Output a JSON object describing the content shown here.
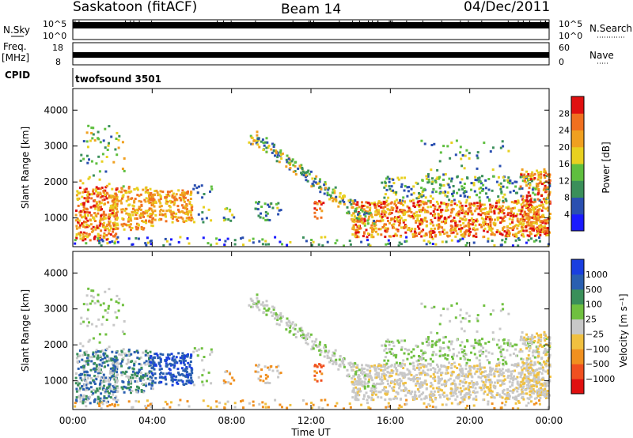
{
  "header": {
    "station": "Saskatoon (fitACF)",
    "beam": "Beam 14",
    "date": "04/Dec/2011"
  },
  "strip_labels": {
    "nsky": "N.Sky",
    "nsky_ticks": [
      "10^5",
      "10^0"
    ],
    "nsearch": "N.Search",
    "nsearch_ticks": [
      "10^5",
      "10^0"
    ],
    "freq_line1": "Freq.",
    "freq_line2": "[MHz]",
    "freq_ticks": [
      "18",
      "8"
    ],
    "nave": "Nave",
    "nave_ticks": [
      "60",
      "0"
    ],
    "cpid": "CPID",
    "cpid_value": "twofsound 3501"
  },
  "colors": {
    "power": [
      "#1a1aff",
      "#2a4fb0",
      "#3a8f5a",
      "#5fbf3f",
      "#e8d020",
      "#f0a020",
      "#f07020",
      "#e01010"
    ],
    "velocity": [
      "#e01010",
      "#f05020",
      "#f09020",
      "#f0c040",
      "#c8c8c8",
      "#70c040",
      "#3a8f5a",
      "#2a5fb0",
      "#1a3fe0"
    ]
  },
  "chart_data": [
    {
      "type": "heatmap",
      "name": "power",
      "ylabel": "Slant Range [km]",
      "x_range_hours": [
        0,
        24
      ],
      "ylim": [
        200,
        4600
      ],
      "y_ticks": [
        1000,
        2000,
        3000,
        4000
      ],
      "colorbar_label": "Power [dB]",
      "colorbar_ticks": [
        "4",
        "8",
        "12",
        "16",
        "20",
        "24",
        "28"
      ],
      "colorbar_range": [
        0,
        32
      ]
    },
    {
      "type": "heatmap",
      "name": "velocity",
      "xlabel": "Time UT",
      "ylabel": "Slant Range [km]",
      "x_ticks": [
        "00:00",
        "04:00",
        "08:00",
        "12:00",
        "16:00",
        "20:00",
        "00:00"
      ],
      "x_range_hours": [
        0,
        24
      ],
      "ylim": [
        200,
        4600
      ],
      "y_ticks": [
        1000,
        2000,
        3000,
        4000
      ],
      "colorbar_label": "Velocity [m s⁻¹]",
      "colorbar_ticks": [
        "1000",
        "500",
        "100",
        "25",
        "−25",
        "−100",
        "−500",
        "−1000"
      ]
    }
  ]
}
